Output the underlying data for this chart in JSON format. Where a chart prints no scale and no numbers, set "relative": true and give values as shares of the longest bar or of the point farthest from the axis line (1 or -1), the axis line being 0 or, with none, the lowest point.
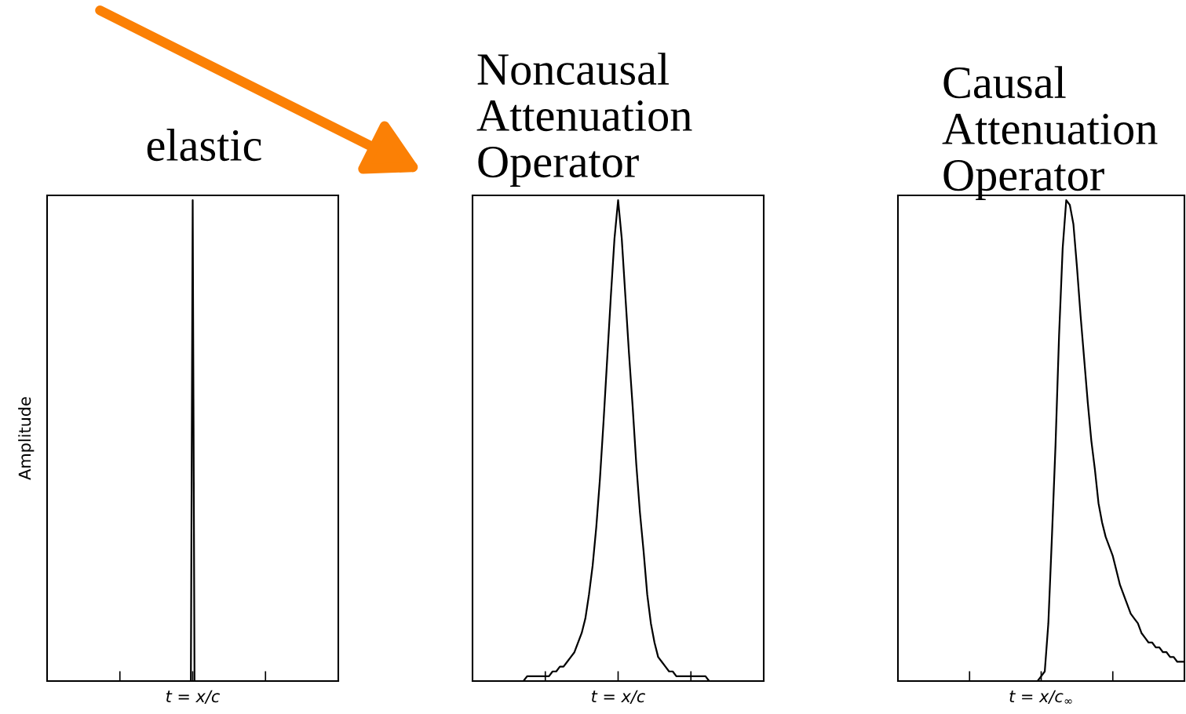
{
  "chart_data": [
    {
      "type": "line",
      "title": "elastic",
      "ylabel": "Amplitude",
      "relative": true,
      "annotations": [
        "t = x/c"
      ],
      "categories": [
        null,
        null,
        null,
        null,
        null,
        null,
        null,
        null,
        null,
        null,
        null,
        null,
        null,
        null,
        null,
        null,
        null,
        null,
        null,
        null,
        null,
        null,
        null,
        null,
        null,
        null,
        null,
        null,
        null,
        null,
        null,
        null,
        null,
        null,
        null,
        null,
        null,
        null,
        null,
        null,
        null,
        null,
        null,
        null,
        null,
        null,
        null,
        null,
        null,
        null,
        null,
        null,
        null,
        null,
        null,
        null,
        null,
        null,
        null,
        null,
        null,
        null,
        null,
        null,
        null,
        null,
        null,
        null,
        null,
        null,
        null,
        null,
        null,
        null,
        null,
        null,
        null,
        null,
        null,
        null,
        null,
        null,
        null,
        null,
        null,
        null,
        null,
        null,
        null,
        null,
        null,
        null,
        null,
        null,
        null,
        null,
        null,
        null,
        null,
        null,
        null,
        null,
        null,
        null,
        null,
        null,
        null,
        null,
        null,
        null,
        null,
        null,
        null,
        null,
        null,
        null,
        null,
        null,
        null,
        null,
        null,
        null,
        null,
        null,
        null,
        null,
        null,
        null,
        null,
        null,
        null,
        null,
        null,
        null,
        null,
        null,
        null,
        null,
        null,
        null,
        null,
        null,
        null,
        null,
        null,
        null,
        null,
        null,
        null,
        null,
        null,
        null,
        null,
        null,
        null,
        null,
        null,
        null,
        null,
        null,
        null
      ],
      "series": [
        {
          "color": "#000000",
          "values": [
            0,
            0,
            0,
            0,
            0,
            0,
            0,
            0,
            0,
            0,
            0,
            0,
            0,
            0,
            0,
            0,
            0,
            0,
            0,
            0,
            0,
            0,
            0,
            0,
            0,
            0,
            0,
            0,
            0,
            0,
            0,
            0,
            0,
            0,
            0,
            0,
            0,
            0,
            0,
            0,
            0,
            0,
            0,
            0,
            0,
            0,
            0,
            0,
            0,
            0,
            0,
            0,
            0,
            0,
            0,
            0,
            0,
            0,
            0,
            0,
            0,
            0,
            0,
            0,
            0,
            0,
            0,
            0,
            0,
            0,
            0,
            0,
            0,
            0,
            0,
            0,
            0,
            0,
            0,
            0,
            1,
            0,
            0,
            0,
            0,
            0,
            0,
            0,
            0,
            0,
            0,
            0,
            0,
            0,
            0,
            0,
            0,
            0,
            0,
            0,
            0,
            0,
            0,
            0,
            0,
            0,
            0,
            0,
            0,
            0,
            0,
            0,
            0,
            0,
            0,
            0,
            0,
            0,
            0,
            0,
            0,
            0,
            0,
            0,
            0,
            0,
            0,
            0,
            0,
            0,
            0,
            0,
            0,
            0,
            0,
            0,
            0,
            0,
            0,
            0,
            0,
            0,
            0,
            0,
            0,
            0,
            0,
            0,
            0,
            0,
            0,
            0,
            0,
            0,
            0,
            0,
            0,
            0,
            0,
            0,
            0
          ]
        }
      ]
    },
    {
      "type": "line",
      "title": "Noncausal\nAttenuation\nOperator",
      "relative": true,
      "annotations": [
        "t = x/c"
      ],
      "categories": [
        null,
        null,
        null,
        null,
        null,
        null,
        null,
        null,
        null,
        null,
        null,
        null,
        null,
        null,
        null,
        null,
        null,
        null,
        null,
        null,
        null,
        null,
        null,
        null,
        null,
        null,
        null,
        null,
        null,
        null,
        null,
        null,
        null,
        null,
        null,
        null,
        null,
        null,
        null,
        null,
        null,
        null,
        null,
        null,
        null,
        null,
        null,
        null,
        null,
        null,
        null,
        null,
        null,
        null,
        null,
        null,
        null,
        null,
        null,
        null,
        null,
        null,
        null,
        null,
        null,
        null,
        null,
        null,
        null,
        null,
        null,
        null,
        null,
        null,
        null,
        null,
        null,
        null,
        null,
        null,
        null
      ],
      "series": [
        {
          "color": "#000000",
          "values": [
            0,
            0,
            0,
            0,
            0,
            0,
            0,
            0,
            0,
            0,
            0,
            0,
            0,
            0,
            0,
            0.01,
            0.01,
            0.01,
            0.01,
            0.01,
            0.01,
            0.01,
            0.02,
            0.02,
            0.03,
            0.03,
            0.04,
            0.05,
            0.06,
            0.08,
            0.1,
            0.13,
            0.18,
            0.24,
            0.32,
            0.42,
            0.54,
            0.67,
            0.8,
            0.92,
            1,
            0.92,
            0.8,
            0.68,
            0.57,
            0.45,
            0.35,
            0.27,
            0.18,
            0.12,
            0.08,
            0.05,
            0.04,
            0.03,
            0.02,
            0.02,
            0.01,
            0.01,
            0.01,
            0.01,
            0.01,
            0.01,
            0.01,
            0.01,
            0.01,
            0,
            0,
            0,
            0,
            0,
            0,
            0,
            0,
            0,
            0,
            0,
            0,
            0,
            0,
            0,
            0
          ]
        }
      ]
    },
    {
      "type": "line",
      "title": "Causal\nAttenuation\nOperator",
      "relative": true,
      "annotations": [
        "t = x/c$_{∞}$"
      ],
      "categories": [
        null,
        null,
        null,
        null,
        null,
        null,
        null,
        null,
        null,
        null,
        null,
        null,
        null,
        null,
        null,
        null,
        null,
        null,
        null,
        null,
        null,
        null,
        null,
        null,
        null,
        null,
        null,
        null,
        null,
        null,
        null,
        null,
        null,
        null,
        null,
        null,
        null,
        null,
        null,
        null,
        null,
        null,
        null,
        null,
        null,
        null,
        null,
        null,
        null,
        null,
        null,
        null,
        null,
        null,
        null,
        null,
        null,
        null,
        null,
        null,
        null,
        null,
        null,
        null,
        null,
        null,
        null,
        null,
        null,
        null,
        null,
        null,
        null,
        null,
        null,
        null,
        null,
        null,
        null,
        null,
        null
      ],
      "series": [
        {
          "color": "#000000",
          "values": [
            0,
            0,
            0,
            0,
            0,
            0,
            0,
            0,
            0,
            0,
            0,
            0,
            0,
            0,
            0,
            0,
            0,
            0,
            0,
            0,
            0,
            0,
            0,
            0,
            0,
            0,
            0,
            0,
            0,
            0,
            0,
            0,
            0,
            0,
            0,
            0,
            0,
            0,
            0,
            0,
            0.01,
            0.02,
            0.12,
            0.3,
            0.49,
            0.72,
            0.9,
            1,
            0.99,
            0.95,
            0.86,
            0.76,
            0.67,
            0.58,
            0.5,
            0.44,
            0.37,
            0.33,
            0.3,
            0.28,
            0.26,
            0.23,
            0.2,
            0.18,
            0.16,
            0.14,
            0.13,
            0.12,
            0.1,
            0.09,
            0.08,
            0.08,
            0.07,
            0.07,
            0.06,
            0.06,
            0.05,
            0.05,
            0.04,
            0.04,
            0.04
          ]
        }
      ]
    }
  ]
}
